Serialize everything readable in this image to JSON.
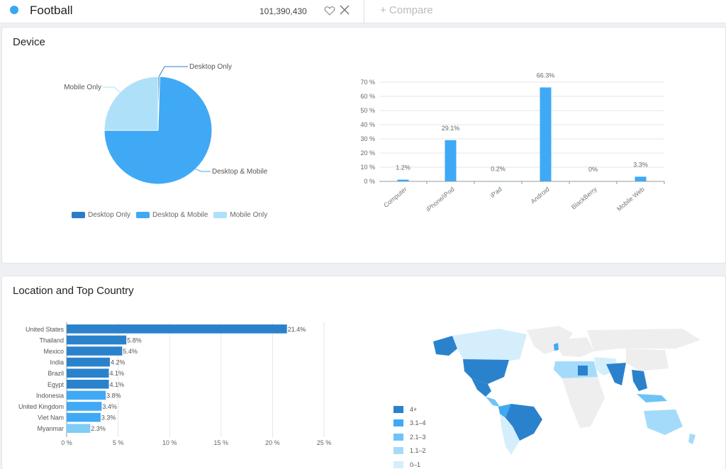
{
  "header": {
    "keyword": "Football",
    "audience": "101,390,430",
    "compare": "+ Compare",
    "accent": "#3aa7f3"
  },
  "device": {
    "title": "Device",
    "pie": {
      "type": "pie",
      "slices": [
        {
          "label": "Desktop Only",
          "value": 0.5,
          "color": "#2b7cc7"
        },
        {
          "label": "Desktop & Mobile",
          "value": 74.5,
          "color": "#3fa9f5"
        },
        {
          "label": "Mobile Only",
          "value": 25,
          "color": "#aee0fa"
        }
      ],
      "legend_position": "bottom"
    },
    "bar": {
      "type": "bar",
      "categories": [
        "Computer",
        "iPhone/iPod",
        "iPad",
        "Android",
        "BlackBerry",
        "Mobile Web"
      ],
      "values": [
        1.2,
        29.1,
        0.2,
        66.3,
        0,
        3.3
      ],
      "labels": [
        "1.2%",
        "29.1%",
        "0.2%",
        "66.3%",
        "0%",
        "3.3%"
      ],
      "yticks": [
        "0 %",
        "10 %",
        "20 %",
        "30 %",
        "40 %",
        "50 %",
        "60 %",
        "70 %"
      ],
      "ylim": [
        0,
        70
      ],
      "grid": true,
      "color": "#3fa9f5"
    }
  },
  "location": {
    "title": "Location and Top Country",
    "bar": {
      "type": "bar",
      "orientation": "horizontal",
      "categories": [
        "United States",
        "Thailand",
        "Mexico",
        "India",
        "Brazil",
        "Egypt",
        "Indonesia",
        "United Kingdom",
        "Viet Nam",
        "Myanmar"
      ],
      "values": [
        21.4,
        5.8,
        5.4,
        4.2,
        4.1,
        4.1,
        3.8,
        3.4,
        3.3,
        2.3
      ],
      "labels": [
        "21.4%",
        "5.8%",
        "5.4%",
        "4.2%",
        "4.1%",
        "4.1%",
        "3.8%",
        "3.4%",
        "3.3%",
        "2.3%"
      ],
      "colors": [
        "#2b82cc",
        "#2b82cc",
        "#2b82cc",
        "#2b82cc",
        "#2b82cc",
        "#2b82cc",
        "#3fa9f5",
        "#3fa9f5",
        "#3fa9f5",
        "#7fccf7"
      ],
      "xticks": [
        "0 %",
        "5 %",
        "10 %",
        "15 %",
        "20 %",
        "25 %"
      ],
      "xlim": [
        0,
        25
      ],
      "grid": true
    },
    "map_legend": [
      {
        "label": "4+",
        "color": "#2b82cc"
      },
      {
        "label": "3.1–4",
        "color": "#3fa9f5"
      },
      {
        "label": "2.1–3",
        "color": "#6ec3f7"
      },
      {
        "label": "1.1–2",
        "color": "#a5dbfa"
      },
      {
        "label": "0–1",
        "color": "#d4eefc"
      }
    ]
  }
}
